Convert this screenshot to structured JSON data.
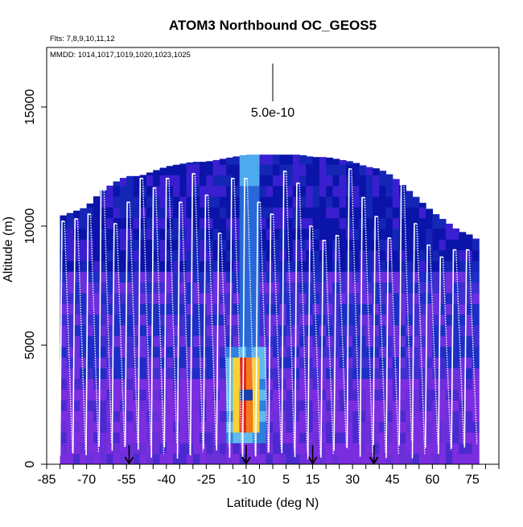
{
  "chart_data": {
    "type": "heatmap",
    "title": "ATOM3 Northbound OC_GEOS5",
    "subtitle_flights": "Flts: 7,8,9,10,11,12",
    "subtitle_dates": "MMDD: 1014,1017,1019,1020,1023,1025",
    "xlabel": "Latitude (deg N)",
    "ylabel": "Altitude (m)",
    "xlim": [
      -85,
      85
    ],
    "ylim": [
      0,
      17500
    ],
    "x_ticks": [
      -85,
      -70,
      -55,
      -40,
      -25,
      -10,
      5,
      15,
      30,
      45,
      60,
      75
    ],
    "x_tick_labels": [
      "-85",
      "-70",
      "-55",
      "-40",
      "-25",
      "-10",
      "5",
      "15",
      "30",
      "45",
      "60",
      "75"
    ],
    "y_ticks": [
      0,
      5000,
      10000,
      15000
    ],
    "y_tick_labels": [
      "0",
      "5000",
      "10000",
      "15000"
    ],
    "scale_bar_label": "5.0e-10",
    "arrow_latitudes": [
      -54,
      -10,
      15,
      38
    ],
    "curtain_top": [
      [
        -80,
        10400
      ],
      [
        -75,
        10600
      ],
      [
        -70,
        10800
      ],
      [
        -65,
        11400
      ],
      [
        -60,
        11800
      ],
      [
        -55,
        12100
      ],
      [
        -50,
        12100
      ],
      [
        -45,
        12300
      ],
      [
        -40,
        12500
      ],
      [
        -35,
        12600
      ],
      [
        -30,
        12700
      ],
      [
        -25,
        12700
      ],
      [
        -20,
        12800
      ],
      [
        -15,
        12900
      ],
      [
        -10,
        13000
      ],
      [
        -5,
        13000
      ],
      [
        0,
        13000
      ],
      [
        5,
        13000
      ],
      [
        10,
        13000
      ],
      [
        15,
        12900
      ],
      [
        20,
        12900
      ],
      [
        25,
        12800
      ],
      [
        30,
        12700
      ],
      [
        35,
        12500
      ],
      [
        40,
        12400
      ],
      [
        45,
        12100
      ],
      [
        50,
        11600
      ],
      [
        55,
        11100
      ],
      [
        60,
        10600
      ],
      [
        65,
        10200
      ],
      [
        70,
        9800
      ],
      [
        75,
        9600
      ],
      [
        78,
        9300
      ]
    ],
    "concentration_hotspot": {
      "lat": -10,
      "alt_range": [
        1500,
        4500
      ],
      "peak_lat_range": [
        -14,
        -7
      ]
    },
    "flight_profile_top_altitudes": [
      10200,
      10300,
      10500,
      12000,
      10100,
      11000,
      12000,
      11600,
      12000,
      11000,
      12200,
      11300,
      9700,
      12000,
      12000,
      11000,
      10500,
      12300,
      11800,
      10000,
      9400,
      9600,
      12400,
      11200,
      10400,
      9500,
      12000,
      10100,
      9200,
      8700,
      9000,
      9000
    ]
  }
}
